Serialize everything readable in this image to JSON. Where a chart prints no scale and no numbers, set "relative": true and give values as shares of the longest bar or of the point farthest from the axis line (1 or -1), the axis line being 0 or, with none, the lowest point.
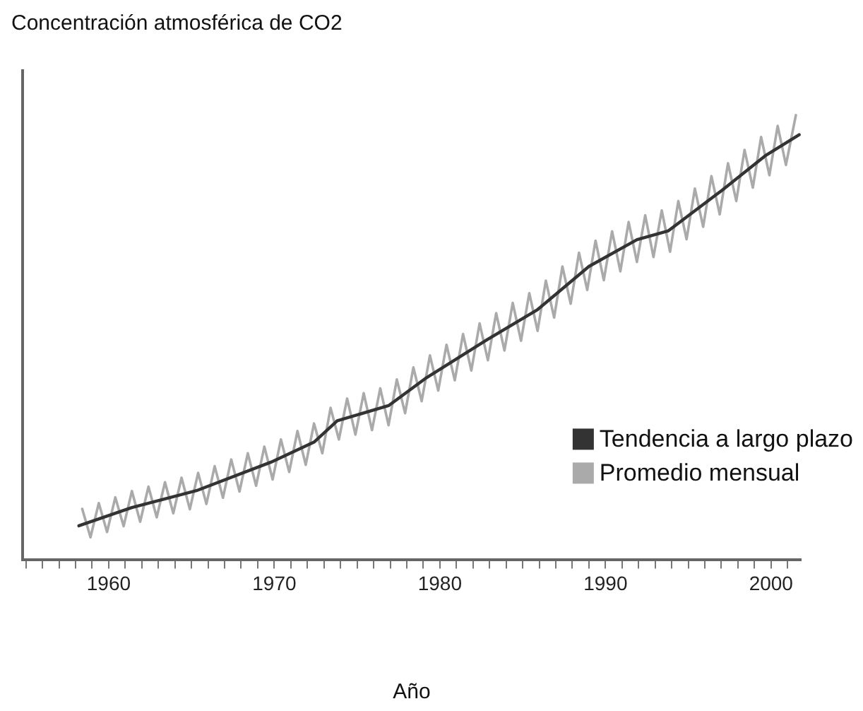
{
  "chart_data": {
    "type": "line",
    "title": "Concentración atmosférica de CO2",
    "xlabel": "Año",
    "relative": true,
    "xlim": [
      1954.8,
      2001.8
    ],
    "xticks": [
      {
        "value": 1955,
        "label": null
      },
      {
        "value": 1956,
        "label": null
      },
      {
        "value": 1957,
        "label": null
      },
      {
        "value": 1958,
        "label": null
      },
      {
        "value": 1959,
        "label": null
      },
      1960,
      {
        "value": 1961,
        "label": null
      },
      {
        "value": 1962,
        "label": null
      },
      {
        "value": 1963,
        "label": null
      },
      {
        "value": 1964,
        "label": null
      },
      {
        "value": 1965,
        "label": null
      },
      {
        "value": 1966,
        "label": null
      },
      {
        "value": 1967,
        "label": null
      },
      {
        "value": 1968,
        "label": null
      },
      {
        "value": 1969,
        "label": null
      },
      1970,
      {
        "value": 1971,
        "label": null
      },
      {
        "value": 1972,
        "label": null
      },
      {
        "value": 1973,
        "label": null
      },
      {
        "value": 1974,
        "label": null
      },
      {
        "value": 1975,
        "label": null
      },
      {
        "value": 1976,
        "label": null
      },
      {
        "value": 1977,
        "label": null
      },
      {
        "value": 1978,
        "label": null
      },
      {
        "value": 1979,
        "label": null
      },
      1980,
      {
        "value": 1981,
        "label": null
      },
      {
        "value": 1982,
        "label": null
      },
      {
        "value": 1983,
        "label": null
      },
      {
        "value": 1984,
        "label": null
      },
      {
        "value": 1985,
        "label": null
      },
      {
        "value": 1986,
        "label": null
      },
      {
        "value": 1987,
        "label": null
      },
      {
        "value": 1988,
        "label": null
      },
      {
        "value": 1989,
        "label": null
      },
      1990,
      {
        "value": 1991,
        "label": null
      },
      {
        "value": 1992,
        "label": null
      },
      {
        "value": 1993,
        "label": null
      },
      {
        "value": 1994,
        "label": null
      },
      {
        "value": 1995,
        "label": null
      },
      {
        "value": 1996,
        "label": null
      },
      {
        "value": 1997,
        "label": null
      },
      {
        "value": 1998,
        "label": null
      },
      {
        "value": 1999,
        "label": null
      },
      2000,
      {
        "value": 2001,
        "label": null
      }
    ],
    "legend": "bottom right",
    "marker": "none",
    "line_style": "solid",
    "series": [
      {
        "name": "Tendencia a largo plazo",
        "color": "#333333",
        "x": [
          1958.2,
          1961.4,
          1965.3,
          1969.8,
          1972.4,
          1973.8,
          1976.9,
          1979.2,
          1982.8,
          1985.9,
          1989.0,
          1991.9,
          1993.8,
          1997.0,
          1999.7,
          2001.7
        ],
        "values": [
          0.077,
          0.118,
          0.156,
          0.22,
          0.265,
          0.313,
          0.347,
          0.41,
          0.494,
          0.563,
          0.66,
          0.72,
          0.74,
          0.83,
          0.91,
          0.956
        ]
      },
      {
        "name": "Promedio mensual",
        "color": "#aaaaaa",
        "x": [
          1958.4,
          1958.9,
          1959.4,
          1959.9,
          1960.4,
          1960.9,
          1961.4,
          1961.9,
          1962.4,
          1962.9,
          1963.4,
          1963.9,
          1964.4,
          1964.9,
          1965.4,
          1965.9,
          1966.4,
          1966.9,
          1967.4,
          1967.9,
          1968.4,
          1968.9,
          1969.4,
          1969.9,
          1970.4,
          1970.9,
          1971.4,
          1971.9,
          1972.4,
          1972.9,
          1973.4,
          1973.9,
          1974.4,
          1974.9,
          1975.4,
          1975.9,
          1976.4,
          1976.9,
          1977.4,
          1977.9,
          1978.4,
          1978.9,
          1979.4,
          1979.9,
          1980.4,
          1980.9,
          1981.4,
          1981.9,
          1982.4,
          1982.9,
          1983.4,
          1983.9,
          1984.4,
          1984.9,
          1985.4,
          1985.9,
          1986.4,
          1986.9,
          1987.4,
          1987.9,
          1988.4,
          1988.9,
          1989.4,
          1989.9,
          1990.4,
          1990.9,
          1991.4,
          1991.9,
          1992.4,
          1992.9,
          1993.4,
          1993.9,
          1994.4,
          1994.9,
          1995.4,
          1995.9,
          1996.4,
          1996.9,
          1997.4,
          1997.9,
          1998.4,
          1998.9,
          1999.4,
          1999.9,
          2000.4,
          2000.9,
          2001.5
        ],
        "values": [
          0.115,
          0.051,
          0.128,
          0.063,
          0.141,
          0.076,
          0.155,
          0.086,
          0.165,
          0.096,
          0.175,
          0.105,
          0.185,
          0.114,
          0.196,
          0.126,
          0.211,
          0.14,
          0.226,
          0.154,
          0.24,
          0.167,
          0.255,
          0.181,
          0.271,
          0.198,
          0.29,
          0.214,
          0.307,
          0.24,
          0.342,
          0.271,
          0.363,
          0.282,
          0.375,
          0.292,
          0.386,
          0.303,
          0.406,
          0.33,
          0.433,
          0.357,
          0.46,
          0.381,
          0.484,
          0.404,
          0.508,
          0.426,
          0.532,
          0.449,
          0.555,
          0.471,
          0.578,
          0.493,
          0.6,
          0.515,
          0.628,
          0.545,
          0.66,
          0.576,
          0.691,
          0.607,
          0.718,
          0.629,
          0.739,
          0.649,
          0.76,
          0.67,
          0.775,
          0.681,
          0.786,
          0.693,
          0.807,
          0.721,
          0.835,
          0.749,
          0.863,
          0.777,
          0.892,
          0.807,
          0.922,
          0.837,
          0.951,
          0.865,
          0.976,
          0.888,
          1.0
        ]
      }
    ]
  }
}
